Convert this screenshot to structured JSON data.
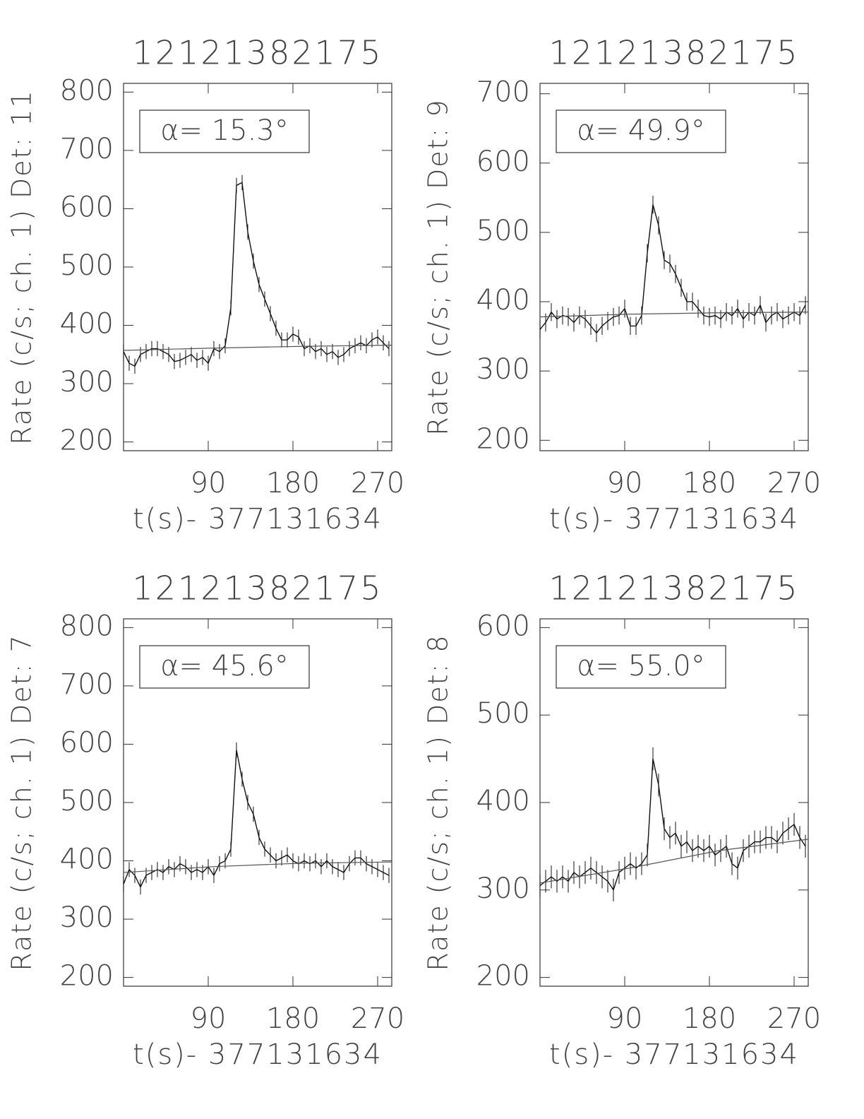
{
  "chart_data": [
    {
      "type": "line",
      "title": "12121382175",
      "ylabel": "Rate (c/s; ch. 1) Det: 11",
      "xlabel": "t(s)- 377131634",
      "annotation": "α= 15.3°",
      "xlim": [
        0,
        285
      ],
      "xticks": [
        90,
        180,
        270
      ],
      "ylim": [
        185,
        815
      ],
      "yticks": [
        200,
        300,
        400,
        500,
        600,
        700,
        800
      ],
      "x": [
        0,
        6,
        12,
        18,
        24,
        30,
        36,
        42,
        48,
        54,
        60,
        66,
        72,
        78,
        84,
        90,
        96,
        102,
        108,
        114,
        120,
        126,
        132,
        138,
        144,
        150,
        156,
        162,
        168,
        174,
        180,
        186,
        192,
        198,
        204,
        210,
        216,
        222,
        228,
        234,
        240,
        246,
        252,
        258,
        264,
        270,
        276,
        282
      ],
      "series": [
        {
          "color": "#111111",
          "error": 13,
          "values": [
            355,
            335,
            330,
            350,
            355,
            360,
            360,
            355,
            350,
            338,
            340,
            345,
            350,
            340,
            345,
            335,
            360,
            355,
            365,
            430,
            640,
            645,
            560,
            510,
            470,
            445,
            420,
            395,
            375,
            375,
            385,
            380,
            360,
            365,
            355,
            360,
            350,
            355,
            345,
            350,
            360,
            365,
            370,
            365,
            375,
            380,
            370,
            360
          ]
        },
        {
          "color": "#555555",
          "x": [
            0,
            95,
            190,
            285
          ],
          "values": [
            357,
            361,
            364,
            366
          ]
        }
      ]
    },
    {
      "type": "line",
      "title": "12121382175",
      "ylabel": "Rate (c/s; ch. 1) Det: 9",
      "xlabel": "t(s)- 377131634",
      "annotation": "α= 49.9°",
      "xlim": [
        0,
        285
      ],
      "xticks": [
        90,
        180,
        270
      ],
      "ylim": [
        185,
        715
      ],
      "yticks": [
        200,
        300,
        400,
        500,
        600,
        700
      ],
      "x": [
        0,
        6,
        12,
        18,
        24,
        30,
        36,
        42,
        48,
        54,
        60,
        66,
        72,
        78,
        84,
        90,
        96,
        102,
        108,
        114,
        120,
        126,
        132,
        138,
        144,
        150,
        156,
        162,
        168,
        174,
        180,
        186,
        192,
        198,
        204,
        210,
        216,
        222,
        228,
        234,
        240,
        246,
        252,
        258,
        264,
        270,
        276,
        282
      ],
      "series": [
        {
          "color": "#111111",
          "error": 13,
          "values": [
            360,
            370,
            385,
            375,
            380,
            378,
            370,
            380,
            375,
            365,
            355,
            365,
            372,
            378,
            380,
            390,
            365,
            365,
            380,
            470,
            540,
            510,
            460,
            455,
            440,
            420,
            400,
            400,
            390,
            380,
            378,
            380,
            375,
            385,
            380,
            390,
            375,
            385,
            380,
            395,
            370,
            380,
            385,
            375,
            380,
            385,
            380,
            395
          ]
        },
        {
          "color": "#555555",
          "x": [
            0,
            95,
            190,
            285
          ],
          "values": [
            378,
            382,
            384,
            385
          ]
        }
      ]
    },
    {
      "type": "line",
      "title": "12121382175",
      "ylabel": "Rate (c/s; ch. 1) Det: 7",
      "xlabel": "t(s)- 377131634",
      "annotation": "α= 45.6°",
      "xlim": [
        0,
        285
      ],
      "xticks": [
        90,
        180,
        270
      ],
      "ylim": [
        185,
        815
      ],
      "yticks": [
        200,
        300,
        400,
        500,
        600,
        700,
        800
      ],
      "x": [
        0,
        6,
        12,
        18,
        24,
        30,
        36,
        42,
        48,
        54,
        60,
        66,
        72,
        78,
        84,
        90,
        96,
        102,
        108,
        114,
        120,
        126,
        132,
        138,
        144,
        150,
        156,
        162,
        168,
        174,
        180,
        186,
        192,
        198,
        204,
        210,
        216,
        222,
        228,
        234,
        240,
        246,
        252,
        258,
        264,
        270,
        276,
        282
      ],
      "series": [
        {
          "color": "#111111",
          "error": 13,
          "values": [
            360,
            385,
            375,
            355,
            375,
            380,
            385,
            380,
            390,
            385,
            395,
            390,
            380,
            385,
            380,
            390,
            375,
            395,
            400,
            420,
            590,
            540,
            500,
            480,
            440,
            420,
            410,
            400,
            405,
            410,
            400,
            395,
            400,
            395,
            400,
            390,
            400,
            390,
            385,
            380,
            395,
            405,
            405,
            395,
            390,
            385,
            380,
            375
          ]
        },
        {
          "color": "#555555",
          "x": [
            0,
            95,
            190,
            285
          ],
          "values": [
            380,
            390,
            396,
            398
          ]
        }
      ]
    },
    {
      "type": "line",
      "title": "12121382175",
      "ylabel": "Rate (c/s; ch. 1) Det: 8",
      "xlabel": "t(s)- 377131634",
      "annotation": "α= 55.0°",
      "xlim": [
        0,
        285
      ],
      "xticks": [
        90,
        180,
        270
      ],
      "ylim": [
        190,
        610
      ],
      "yticks": [
        200,
        300,
        400,
        500,
        600
      ],
      "x": [
        0,
        6,
        12,
        18,
        24,
        30,
        36,
        42,
        48,
        54,
        60,
        66,
        72,
        78,
        84,
        90,
        96,
        102,
        108,
        114,
        120,
        126,
        132,
        138,
        144,
        150,
        156,
        162,
        168,
        174,
        180,
        186,
        192,
        198,
        204,
        210,
        216,
        222,
        228,
        234,
        240,
        246,
        252,
        258,
        264,
        270,
        276,
        282
      ],
      "series": [
        {
          "color": "#111111",
          "error": 13,
          "values": [
            305,
            310,
            315,
            310,
            315,
            310,
            320,
            315,
            320,
            325,
            320,
            315,
            310,
            300,
            320,
            325,
            330,
            325,
            330,
            340,
            450,
            420,
            370,
            360,
            365,
            350,
            355,
            345,
            350,
            345,
            350,
            340,
            345,
            350,
            330,
            325,
            345,
            350,
            355,
            355,
            360,
            360,
            355,
            365,
            370,
            375,
            360,
            350
          ]
        },
        {
          "color": "#555555",
          "x": [
            0,
            95,
            190,
            285
          ],
          "values": [
            308,
            325,
            345,
            358
          ]
        }
      ]
    }
  ]
}
